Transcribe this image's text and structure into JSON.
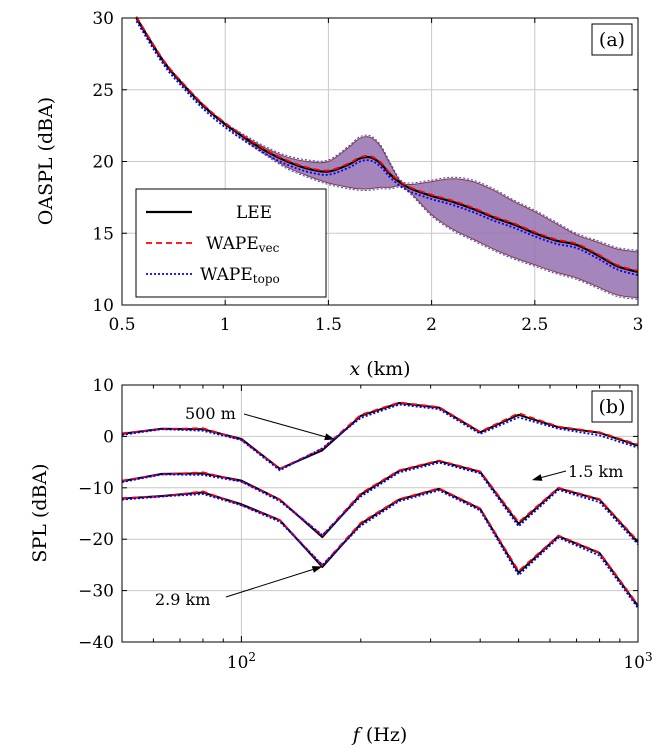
{
  "chart_data": [
    {
      "type": "line",
      "panel_label": "(a)",
      "xlabel_var": "x",
      "xlabel_unit": " (km)",
      "ylabel": "OASPL (dBA)",
      "xlim": [
        0.5,
        3
      ],
      "ylim": [
        10,
        30
      ],
      "xticks": [
        0.5,
        1,
        1.5,
        2,
        2.5,
        3
      ],
      "yticks": [
        10,
        15,
        20,
        25,
        30
      ],
      "grid": true,
      "legend_position": "lower-left",
      "legend": [
        {
          "base": "LEE",
          "sub": "",
          "style": "solid",
          "color": "#000000"
        },
        {
          "base": "WAPE",
          "sub": "vec",
          "style": "dashed",
          "color": "#ff0000"
        },
        {
          "base": "WAPE",
          "sub": "topo",
          "style": "dotted",
          "color": "#0000ff"
        }
      ],
      "band_color": "#9470b0",
      "x": [
        0.57,
        0.7,
        0.8,
        0.9,
        1.0,
        1.1,
        1.2,
        1.3,
        1.4,
        1.5,
        1.6,
        1.65,
        1.7,
        1.75,
        1.8,
        1.85,
        1.9,
        2.0,
        2.1,
        2.2,
        2.3,
        2.4,
        2.5,
        2.6,
        2.7,
        2.8,
        2.9,
        3.0
      ],
      "series": [
        {
          "name": "LEE",
          "values": [
            30.0,
            27.0,
            25.3,
            23.8,
            22.6,
            21.6,
            20.7,
            20.0,
            19.5,
            19.3,
            19.8,
            20.2,
            20.3,
            19.9,
            19.1,
            18.5,
            18.1,
            17.6,
            17.2,
            16.7,
            16.1,
            15.6,
            15.0,
            14.5,
            14.2,
            13.5,
            12.7,
            12.3
          ]
        }
      ],
      "band_upper": [
        30.0,
        27.0,
        25.3,
        23.8,
        22.6,
        21.7,
        20.9,
        20.3,
        20.0,
        20.0,
        21.0,
        21.6,
        21.7,
        21.1,
        19.8,
        18.6,
        18.4,
        18.6,
        18.8,
        18.6,
        18.0,
        17.2,
        16.5,
        15.7,
        14.9,
        14.4,
        13.9,
        13.7
      ],
      "band_lower": [
        30.0,
        27.0,
        25.3,
        23.8,
        22.6,
        21.5,
        20.5,
        19.6,
        19.0,
        18.5,
        18.2,
        18.1,
        18.1,
        18.2,
        18.2,
        18.3,
        17.8,
        16.3,
        15.3,
        14.6,
        13.9,
        13.3,
        12.8,
        12.3,
        11.9,
        11.3,
        10.7,
        10.5
      ]
    },
    {
      "type": "line",
      "panel_label": "(b)",
      "xlabel_var": "f",
      "xlabel_unit": " (Hz)",
      "ylabel": "SPL (dBA)",
      "xscale": "log",
      "xlim": [
        50,
        1000
      ],
      "ylim": [
        -40,
        10
      ],
      "yticks": [
        -40,
        -30,
        -20,
        -10,
        0,
        10
      ],
      "xticks_major": [
        100,
        1000
      ],
      "xtick_labels": [
        {
          "base": "10",
          "exp": "2"
        },
        {
          "base": "10",
          "exp": "3"
        }
      ],
      "grid": true,
      "x": [
        50,
        63,
        80,
        100,
        125,
        160,
        200,
        250,
        315,
        400,
        500,
        630,
        800,
        1000
      ],
      "series": [
        {
          "name": "500 m",
          "values": [
            0.5,
            1.5,
            1.4,
            -0.5,
            -6.3,
            -2.7,
            4.0,
            6.5,
            5.6,
            0.8,
            4.2,
            1.8,
            0.7,
            -1.8
          ]
        },
        {
          "name": "1.5 km",
          "values": [
            -8.7,
            -7.3,
            -7.2,
            -8.6,
            -12.3,
            -19.6,
            -11.3,
            -6.7,
            -4.8,
            -6.9,
            -17.0,
            -10.1,
            -12.3,
            -20.6
          ]
        },
        {
          "name": "2.9 km",
          "values": [
            -12.1,
            -11.6,
            -10.9,
            -13.2,
            -16.3,
            -25.4,
            -17.0,
            -12.3,
            -10.2,
            -14.1,
            -26.5,
            -19.4,
            -22.7,
            -33.0
          ]
        }
      ],
      "series_wape_vec_offset": [
        0.1,
        -0.1,
        0.2,
        -0.2,
        0.0,
        0.3,
        0.2,
        0.1,
        0.1,
        0.1,
        0.3,
        0.1,
        0.1,
        0.2
      ],
      "series_wape_topo_offset": [
        -0.2,
        -0.1,
        -0.3,
        -0.2,
        -0.3,
        0.4,
        -0.4,
        -0.3,
        -0.3,
        -0.3,
        -0.5,
        -0.3,
        -0.5,
        -0.4
      ],
      "annotations": [
        {
          "text": "500 m",
          "target_f": 172,
          "target_spl": -0.6
        },
        {
          "text": "1.5 km",
          "target_f": 540,
          "target_spl": -8.5
        },
        {
          "text": "2.9 km",
          "target_f": 160,
          "target_spl": -25.3
        }
      ]
    }
  ]
}
